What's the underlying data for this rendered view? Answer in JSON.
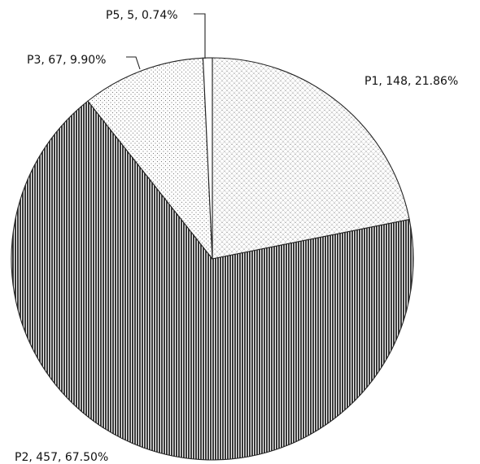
{
  "chart_data": {
    "type": "pie",
    "title": "",
    "slices": [
      {
        "label": "P1, 148, 21.86%",
        "name": "P1",
        "value": 148,
        "percent": 21.86,
        "pattern": "crosshatch-dots"
      },
      {
        "label": "P2, 457, 67.50%",
        "name": "P2",
        "value": 457,
        "percent": 67.5,
        "pattern": "vertical-lines"
      },
      {
        "label": "P3, 67, 9.90%",
        "name": "P3",
        "value": 67,
        "percent": 9.9,
        "pattern": "sparse-dots"
      },
      {
        "label": "P5, 5, 0.74%",
        "name": "P5",
        "value": 5,
        "percent": 0.74,
        "pattern": "blank"
      }
    ],
    "legend": "none",
    "grid": false,
    "start_angle_deg": 0,
    "direction": "clockwise"
  }
}
